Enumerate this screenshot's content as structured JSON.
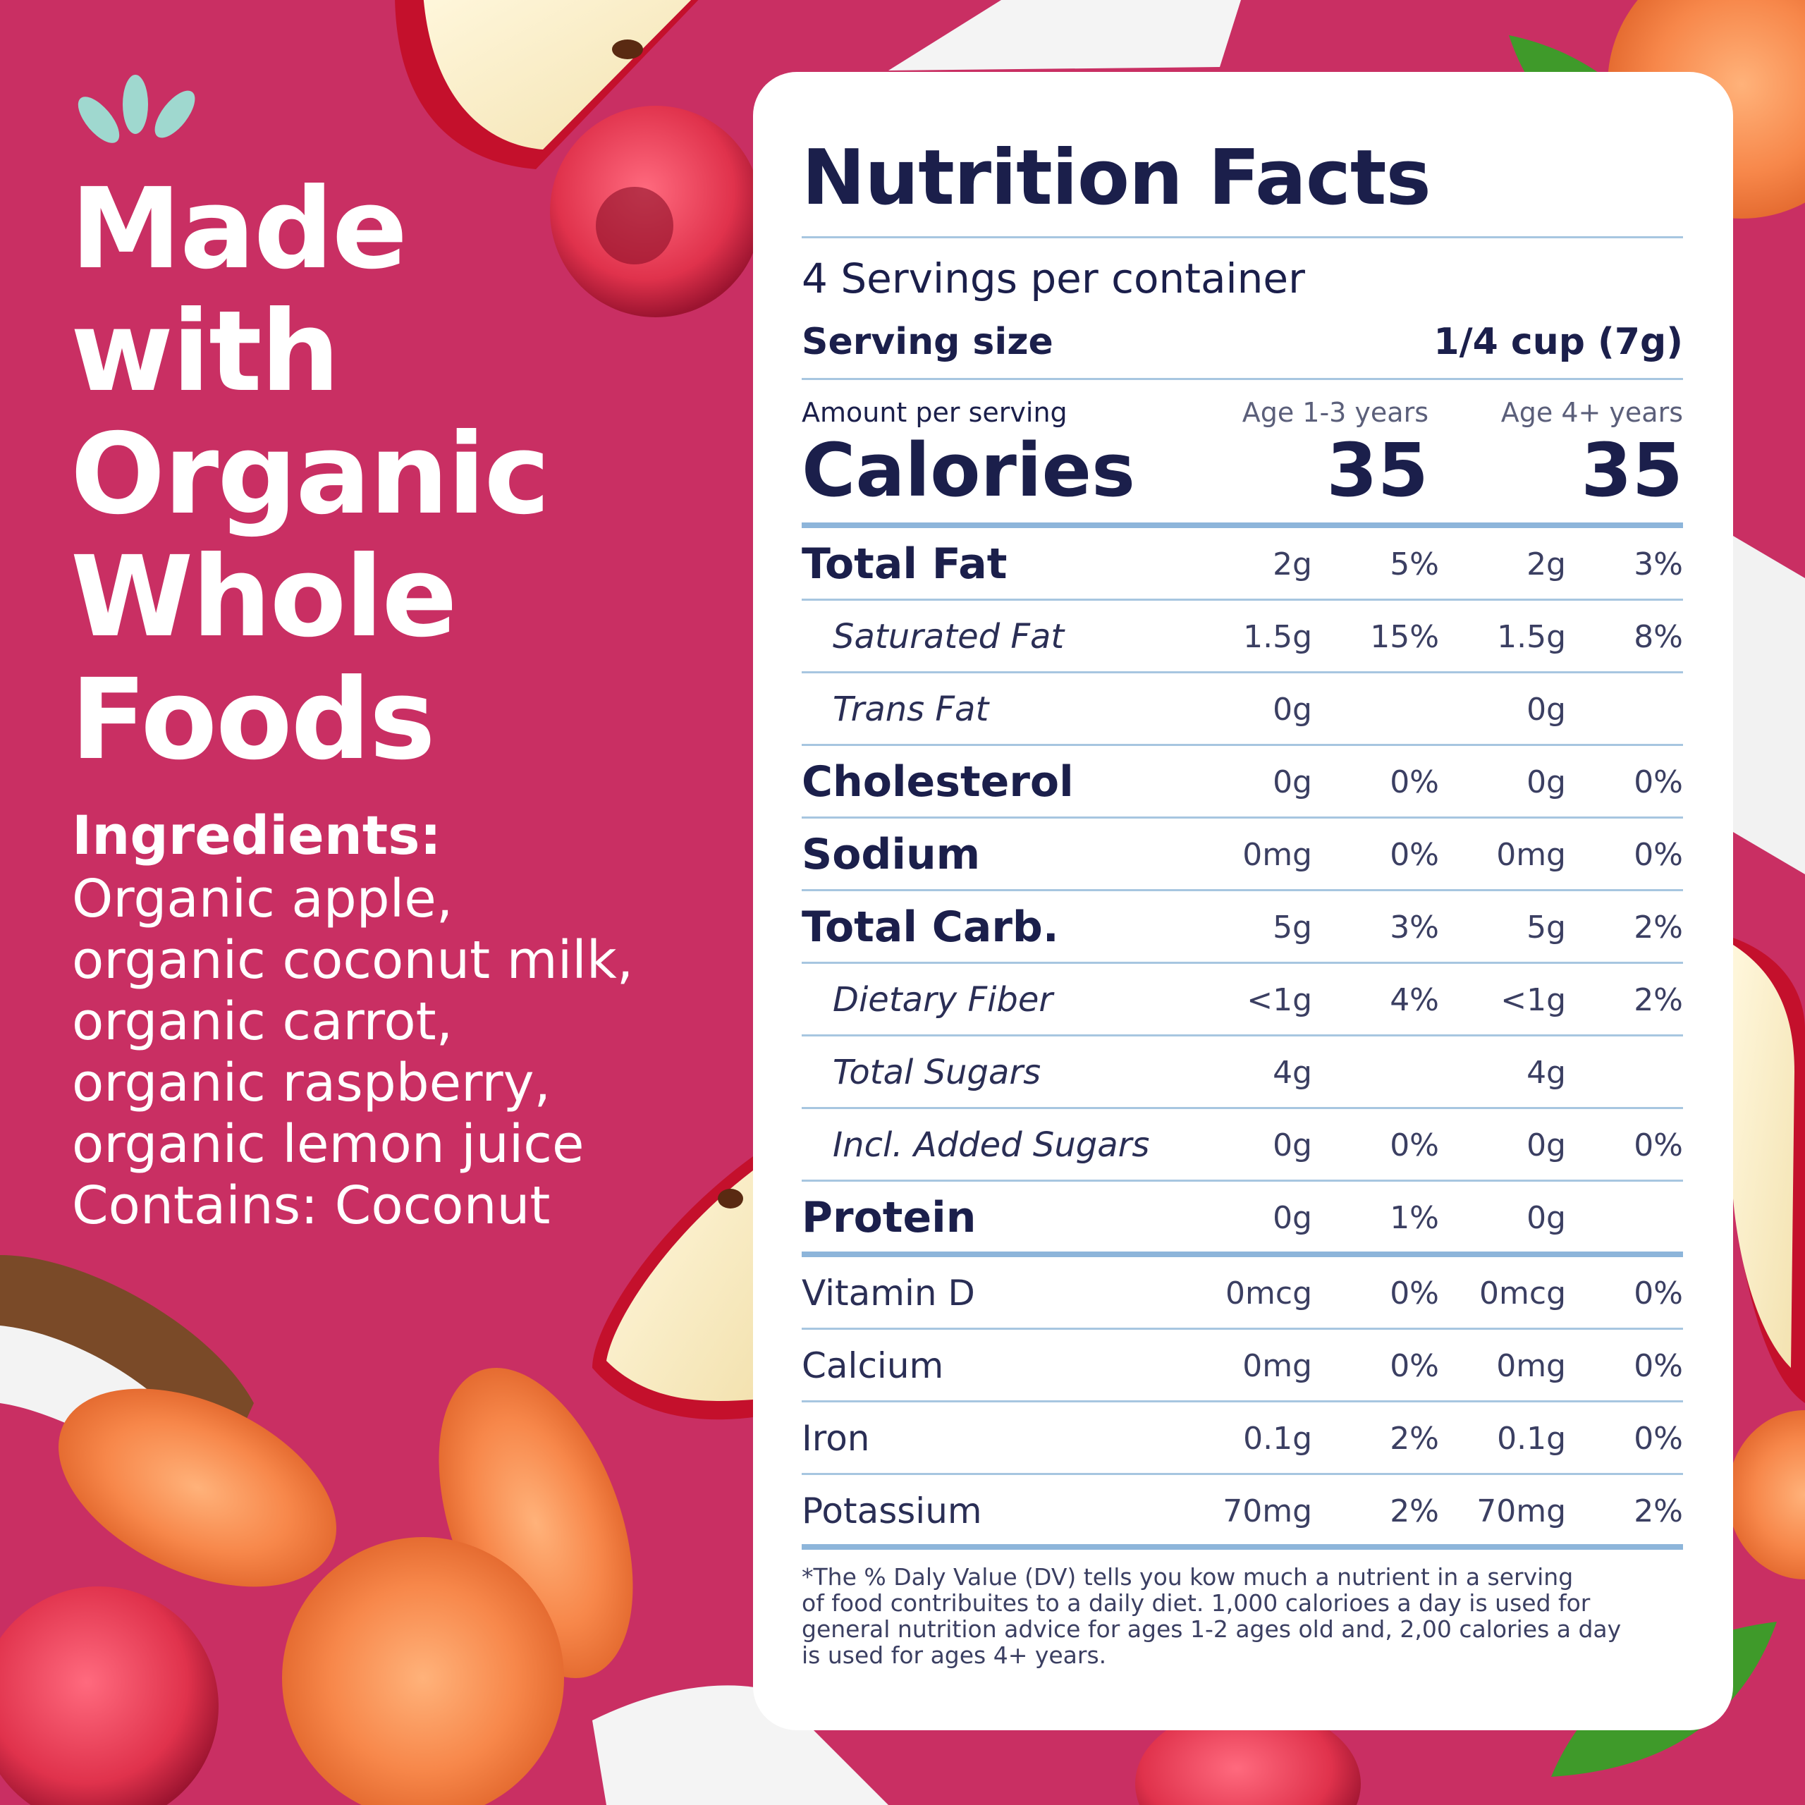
{
  "colors": {
    "background": "#c92f63",
    "card": "#ffffff",
    "navy_text": "#1b1f4b",
    "rule_blue": "#a7c6e0",
    "leaf_mark": "#9fd8cf"
  },
  "left": {
    "logo_icon": "leaf-sprout-icon",
    "headline": [
      "Made",
      "with",
      "Organic",
      "Whole",
      "Foods"
    ],
    "ingredients_title": "Ingredients:",
    "ingredients_lines": [
      "Organic apple,",
      "organic coconut milk,",
      "organic carrot,",
      "organic raspberry,",
      "organic lemon juice",
      "Contains: Coconut"
    ]
  },
  "panel": {
    "title": "Nutrition Facts",
    "servings": "4 Servings per container",
    "serving_size_label": "Serving size",
    "serving_size_value": "1/4 cup (7g)",
    "amount_label": "Amount per serving",
    "age_col_1": "Age 1-3 years",
    "age_col_2": "Age 4+ years",
    "calories_label": "Calories",
    "calories_1": "35",
    "calories_2": "35",
    "rows": [
      {
        "name": "Total Fat",
        "v1": "2g",
        "p1": "5%",
        "v2": "2g",
        "p2": "3%"
      },
      {
        "name": "Saturated Fat",
        "v1": "1.5g",
        "p1": "15%",
        "v2": "1.5g",
        "p2": "8%"
      },
      {
        "name": "Trans Fat",
        "v1": "0g",
        "p1": "",
        "v2": "0g",
        "p2": ""
      },
      {
        "name": "Cholesterol",
        "v1": "0g",
        "p1": "0%",
        "v2": "0g",
        "p2": "0%"
      },
      {
        "name": "Sodium",
        "v1": "0mg",
        "p1": "0%",
        "v2": "0mg",
        "p2": "0%"
      },
      {
        "name": "Total Carb.",
        "v1": "5g",
        "p1": "3%",
        "v2": "5g",
        "p2": "2%"
      },
      {
        "name": "Dietary Fiber",
        "v1": "<1g",
        "p1": "4%",
        "v2": "<1g",
        "p2": "2%"
      },
      {
        "name": "Total Sugars",
        "v1": "4g",
        "p1": "",
        "v2": "4g",
        "p2": ""
      },
      {
        "name": "Incl. Added Sugars",
        "v1": "0g",
        "p1": "0%",
        "v2": "0g",
        "p2": "0%"
      },
      {
        "name": "Protein",
        "v1": "0g",
        "p1": "1%",
        "v2": "0g",
        "p2": ""
      },
      {
        "name": "Vitamin D",
        "v1": "0mcg",
        "p1": "0%",
        "v2": "0mcg",
        "p2": "0%"
      },
      {
        "name": "Calcium",
        "v1": "0mg",
        "p1": "0%",
        "v2": "0mg",
        "p2": "0%"
      },
      {
        "name": "Iron",
        "v1": "0.1g",
        "p1": "2%",
        "v2": "0.1g",
        "p2": "0%"
      },
      {
        "name": "Potassium",
        "v1": "70mg",
        "p1": "2%",
        "v2": "70mg",
        "p2": "2%"
      }
    ],
    "footnote_lines": [
      "*The % Daly Value (DV) tells you kow much a nutrient in a serving",
      "of food contribuites to a daily diet. 1,000 calorioes a day is used for",
      "general nutrition advice for ages 1-2 ages old and, 2,00 calories a day",
      "is used for ages 4+ years."
    ]
  }
}
